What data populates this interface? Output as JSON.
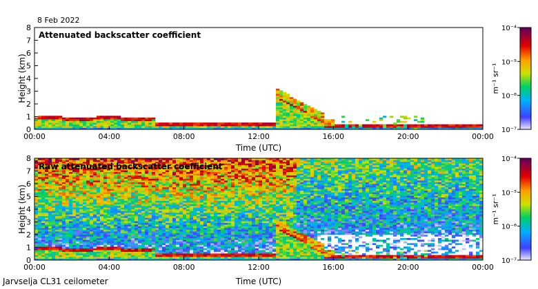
{
  "date_label": "8 Feb 2022",
  "instrument_label": "Jarvselja CL31 ceilometer",
  "chart_data": [
    {
      "type": "heatmap",
      "title": "Attenuated backscatter coefficient",
      "xlabel": "Time (UTC)",
      "ylabel": "Height (km)",
      "xticks": [
        "00:00",
        "04:00",
        "08:00",
        "12:00",
        "16:00",
        "20:00",
        "00:00"
      ],
      "xlim_hours": [
        0,
        24
      ],
      "yticks": [
        0,
        1,
        2,
        3,
        4,
        5,
        6,
        7,
        8
      ],
      "ylim": [
        0,
        8
      ],
      "colorbar": {
        "label": "m⁻¹ sr⁻¹",
        "ticks": [
          "10⁻⁷",
          "10⁻⁶",
          "10⁻⁵",
          "10⁻⁴"
        ],
        "range_log10": [
          -7,
          -4
        ]
      }
    },
    {
      "type": "heatmap",
      "title": "Raw attenuated backscatter coefficient",
      "xlabel": "Time (UTC)",
      "ylabel": "Height (km)",
      "xticks": [
        "00:00",
        "04:00",
        "08:00",
        "12:00",
        "16:00",
        "20:00",
        "00:00"
      ],
      "xlim_hours": [
        0,
        24
      ],
      "yticks": [
        0,
        1,
        2,
        3,
        4,
        5,
        6,
        7,
        8
      ],
      "ylim": [
        0,
        8
      ],
      "colorbar": {
        "label": "m⁻¹ sr⁻¹",
        "ticks": [
          "10⁻⁷",
          "10⁻⁶",
          "10⁻⁵",
          "10⁻⁴"
        ],
        "range_log10": [
          -7,
          -4
        ]
      }
    }
  ]
}
